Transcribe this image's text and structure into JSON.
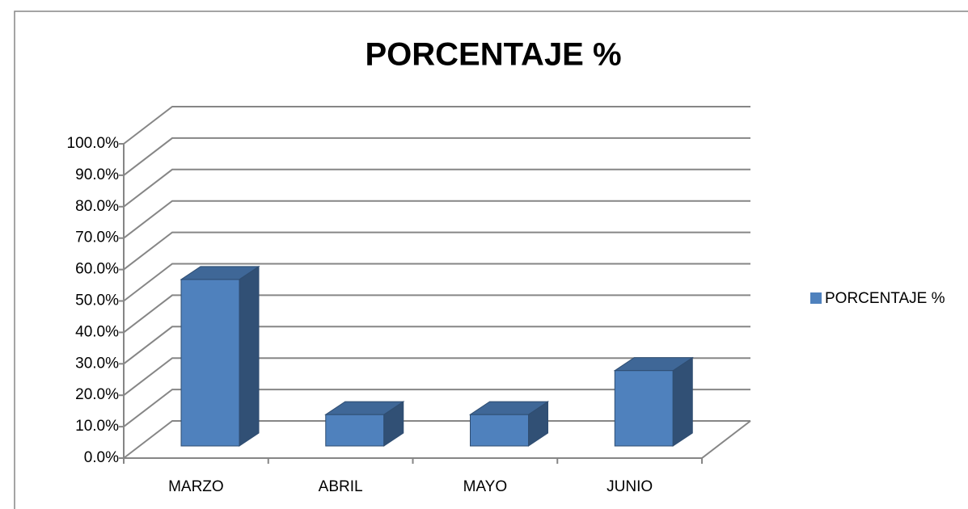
{
  "chart_data": {
    "type": "bar3d",
    "title": "PORCENTAJE %",
    "categories": [
      "MARZO",
      "ABRIL",
      "MAYO",
      "JUNIO"
    ],
    "series": [
      {
        "name": "PORCENTAJE %",
        "color": "#4f81bd",
        "values": [
          53,
          10,
          10,
          24
        ]
      }
    ],
    "ylim": [
      0,
      100
    ],
    "yticks": [
      {
        "value": 0,
        "label": "0.0%"
      },
      {
        "value": 10,
        "label": "10.0%"
      },
      {
        "value": 20,
        "label": "20.0%"
      },
      {
        "value": 30,
        "label": "30.0%"
      },
      {
        "value": 40,
        "label": "40.0%"
      },
      {
        "value": 50,
        "label": "50.0%"
      },
      {
        "value": 60,
        "label": "60.0%"
      },
      {
        "value": 70,
        "label": "70.0%"
      },
      {
        "value": 80,
        "label": "80.0%"
      },
      {
        "value": 90,
        "label": "90.0%"
      },
      {
        "value": 100,
        "label": "100.0%"
      }
    ],
    "grid": true,
    "legend": "right"
  }
}
